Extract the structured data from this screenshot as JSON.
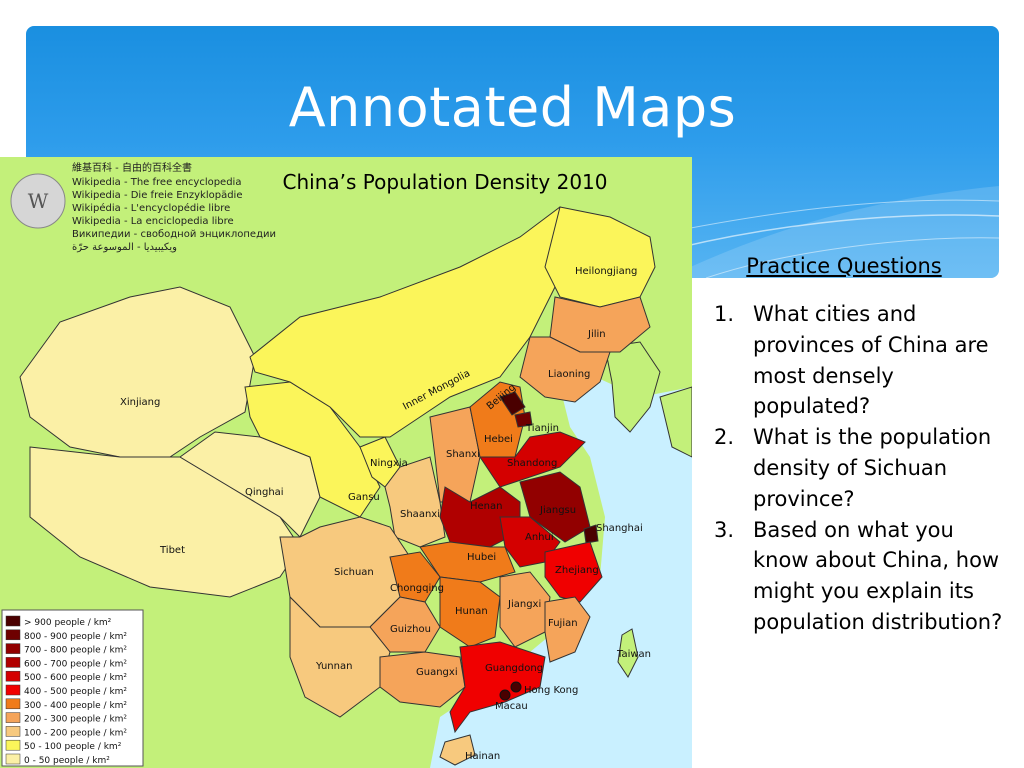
{
  "slide": {
    "title": "Annotated Maps"
  },
  "map": {
    "title": "China’s Population Density 2010",
    "wiki_logo": {
      "lines": [
        "維基百科 - 自由的百科全書",
        "Wikipedia - The free encyclopedia",
        "Wikipedia - Die freie Enzyklopädie",
        "Wikipédia - L'encyclopédie libre",
        "Wikipedia - La enciclopedia libre",
        "Википедии - свободной энциклопедии",
        "ويكيبيديا - الموسوعة حرّة"
      ]
    },
    "legend": [
      {
        "label": "> 900 people / km²",
        "color": "#4a0000"
      },
      {
        "label": "800 - 900 people / km²",
        "color": "#6e0000"
      },
      {
        "label": "700 - 800 people / km²",
        "color": "#920000"
      },
      {
        "label": "600 - 700 people / km²",
        "color": "#b00000"
      },
      {
        "label": "500 - 600 people / km²",
        "color": "#d40000"
      },
      {
        "label": "400 - 500 people / km²",
        "color": "#f00000"
      },
      {
        "label": "300 - 400 people / km²",
        "color": "#f07b1a"
      },
      {
        "label": "200 - 300 people / km²",
        "color": "#f5a45a"
      },
      {
        "label": "100 - 200 people / km²",
        "color": "#f7c97e"
      },
      {
        "label": "50 - 100 people / km²",
        "color": "#fbf55a"
      },
      {
        "label": "0 - 50 people / km²",
        "color": "#fbf0a6"
      }
    ],
    "regions": {
      "xinjiang": "Xinjiang",
      "tibet": "Tibet",
      "qinghai": "Qinghai",
      "gansu": "Gansu",
      "ningxia": "Ningxia",
      "inner_mongolia": "Inner Mongolia",
      "heilongjiang": "Heilongjiang",
      "jilin": "Jilin",
      "liaoning": "Liaoning",
      "beijing": "Beijing",
      "tianjin": "Tianjin",
      "hebei": "Hebei",
      "shanxi": "Shanxi",
      "shandong": "Shandong",
      "henan": "Henan",
      "jiangsu": "Jiangsu",
      "shanghai": "Shanghai",
      "shaanxi": "Shaanxi",
      "anhui": "Anhui",
      "hubei": "Hubei",
      "zhejiang": "Zhejiang",
      "sichuan": "Sichuan",
      "chongqing": "Chongqing",
      "hunan": "Hunan",
      "jiangxi": "Jiangxi",
      "guizhou": "Guizhou",
      "fujian": "Fujian",
      "yunnan": "Yunnan",
      "guangxi": "Guangxi",
      "guangdong": "Guangdong",
      "hong_kong": "Hong Kong",
      "macau": "Macau",
      "taiwan": "Taiwan",
      "hainan": "Hainan"
    },
    "colors": {
      "land_outside": "#c3f07a",
      "sea": "#c9f0ff"
    }
  },
  "practice": {
    "heading": "Practice Questions",
    "questions": [
      {
        "num": "1.",
        "text": "What cities and provinces of China are most densely populated?"
      },
      {
        "num": "2.",
        "text": "What is the population density of Sichuan province?"
      },
      {
        "num": "3.",
        "text": "Based on what you know about China, how might you explain its population distribution?"
      }
    ]
  }
}
